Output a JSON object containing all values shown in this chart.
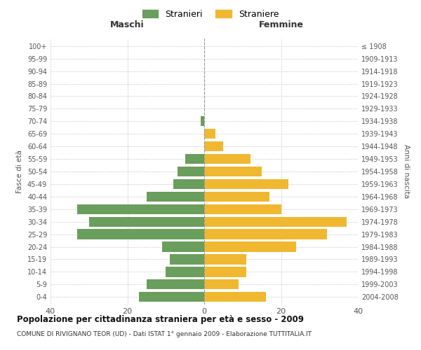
{
  "age_groups": [
    "0-4",
    "5-9",
    "10-14",
    "15-19",
    "20-24",
    "25-29",
    "30-34",
    "35-39",
    "40-44",
    "45-49",
    "50-54",
    "55-59",
    "60-64",
    "65-69",
    "70-74",
    "75-79",
    "80-84",
    "85-89",
    "90-94",
    "95-99",
    "100+"
  ],
  "birth_years": [
    "2004-2008",
    "1999-2003",
    "1994-1998",
    "1989-1993",
    "1984-1988",
    "1979-1983",
    "1974-1978",
    "1969-1973",
    "1964-1968",
    "1959-1963",
    "1954-1958",
    "1949-1953",
    "1944-1948",
    "1939-1943",
    "1934-1938",
    "1929-1933",
    "1924-1928",
    "1919-1923",
    "1914-1918",
    "1909-1913",
    "≤ 1908"
  ],
  "maschi": [
    17,
    15,
    10,
    9,
    11,
    33,
    30,
    33,
    15,
    8,
    7,
    5,
    0,
    0,
    1,
    0,
    0,
    0,
    0,
    0,
    0
  ],
  "femmine": [
    16,
    9,
    11,
    11,
    24,
    32,
    37,
    20,
    17,
    22,
    15,
    12,
    5,
    3,
    0,
    0,
    0,
    0,
    0,
    0,
    0
  ],
  "maschi_color": "#6a9e5c",
  "femmine_color": "#f0b830",
  "background_color": "#ffffff",
  "grid_color": "#cccccc",
  "title": "Popolazione per cittadinanza straniera per età e sesso - 2009",
  "subtitle": "COMUNE DI RIVIGNANO TEOR (UD) - Dati ISTAT 1° gennaio 2009 - Elaborazione TUTTITALIA.IT",
  "xlabel_left": "Maschi",
  "xlabel_right": "Femmine",
  "ylabel_left": "Fasce di età",
  "ylabel_right": "Anni di nascita",
  "legend_stranieri": "Stranieri",
  "legend_straniere": "Straniere",
  "xlim": 40,
  "bar_height": 0.8
}
